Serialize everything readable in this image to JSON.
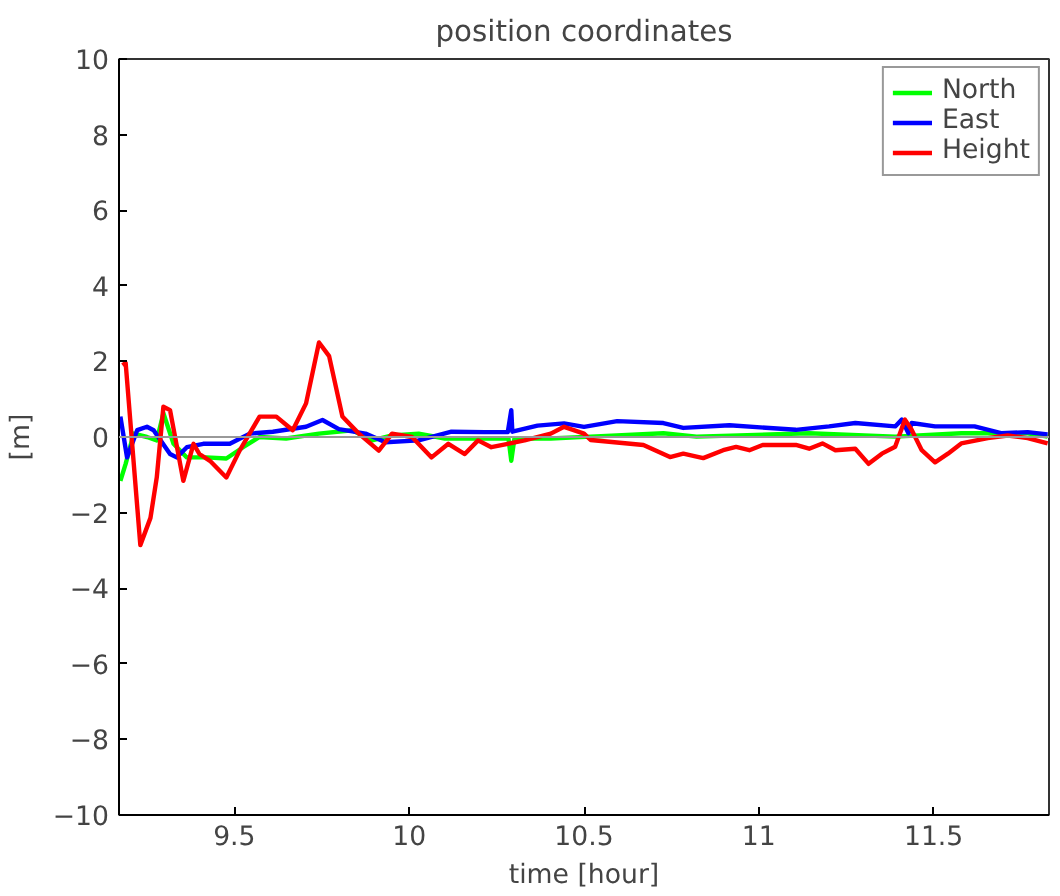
{
  "chart_data": {
    "type": "line",
    "title": "position coordinates",
    "xlabel": "time [hour]",
    "ylabel": "[m]",
    "xlim": [
      9.17,
      11.83
    ],
    "ylim": [
      -10,
      10
    ],
    "xticks": [
      9.5,
      10,
      10.5,
      11,
      11.5
    ],
    "yticks": [
      -10,
      -8,
      -6,
      -4,
      -2,
      0,
      2,
      4,
      6,
      8,
      10
    ],
    "grid": false,
    "legend": "top right",
    "line_style": "solid",
    "ref_lines": [
      {
        "axis": "y",
        "value": 0,
        "color": "#999999"
      }
    ],
    "series": [
      {
        "name": "North",
        "color": "#00ff00",
        "x": [
          9.174,
          9.189,
          9.212,
          9.25,
          9.278,
          9.297,
          9.326,
          9.364,
          9.42,
          9.477,
          9.525,
          9.572,
          9.648,
          9.742,
          9.837,
          9.894,
          9.951,
          10.027,
          10.102,
          10.216,
          10.284,
          10.292,
          10.301,
          10.405,
          10.519,
          10.727,
          10.822,
          11.144,
          11.39,
          11.579,
          11.769,
          11.826
        ],
        "values": [
          -1.16,
          -0.71,
          0.09,
          0,
          -0.09,
          0.63,
          -0.18,
          -0.54,
          -0.54,
          -0.57,
          -0.27,
          0,
          -0.04,
          0.09,
          0.18,
          -0.09,
          0.04,
          0.09,
          -0.04,
          -0.04,
          -0.04,
          -0.63,
          -0.04,
          -0.04,
          0.01,
          0.1,
          0.01,
          0.1,
          0.01,
          0.1,
          0.1,
          0.01
        ]
      },
      {
        "name": "East",
        "color": "#0000ff",
        "x": [
          9.174,
          9.193,
          9.222,
          9.25,
          9.269,
          9.316,
          9.335,
          9.364,
          9.411,
          9.487,
          9.544,
          9.61,
          9.705,
          9.752,
          9.799,
          9.875,
          9.932,
          10.027,
          10.121,
          10.216,
          10.282,
          10.292,
          10.295,
          10.367,
          10.443,
          10.5,
          10.595,
          10.727,
          10.784,
          10.916,
          11.106,
          11.201,
          11.276,
          11.39,
          11.409,
          11.428,
          11.437,
          11.504,
          11.617,
          11.693,
          11.769,
          11.826
        ],
        "values": [
          0.54,
          -0.54,
          0.18,
          0.27,
          0.18,
          -0.45,
          -0.54,
          -0.27,
          -0.18,
          -0.18,
          0.09,
          0.14,
          0.27,
          0.45,
          0.21,
          0.09,
          -0.14,
          -0.09,
          0.14,
          0.13,
          0.13,
          0.71,
          0.14,
          0.3,
          0.36,
          0.27,
          0.42,
          0.37,
          0.24,
          0.31,
          0.19,
          0.28,
          0.37,
          0.28,
          0.46,
          0.1,
          0.37,
          0.28,
          0.28,
          0.1,
          0.13,
          0.07
        ]
      },
      {
        "name": "Height",
        "color": "#ff0000",
        "x": [
          9.18,
          9.189,
          9.231,
          9.26,
          9.278,
          9.297,
          9.316,
          9.354,
          9.383,
          9.4,
          9.43,
          9.477,
          9.515,
          9.572,
          9.62,
          9.667,
          9.705,
          9.742,
          9.771,
          9.809,
          9.856,
          9.913,
          9.951,
          10.008,
          10.064,
          10.112,
          10.159,
          10.197,
          10.235,
          10.282,
          10.33,
          10.405,
          10.443,
          10.5,
          10.519,
          10.67,
          10.746,
          10.784,
          10.841,
          10.898,
          10.935,
          10.973,
          11.011,
          11.106,
          11.144,
          11.182,
          11.219,
          11.276,
          11.314,
          11.352,
          11.39,
          11.418,
          11.437,
          11.466,
          11.504,
          11.541,
          11.579,
          11.655,
          11.712,
          11.769,
          11.826
        ],
        "values": [
          1.9,
          1.96,
          -2.86,
          -2.14,
          -1.07,
          0.8,
          0.71,
          -1.16,
          -0.18,
          -0.45,
          -0.63,
          -1.07,
          -0.36,
          0.54,
          0.54,
          0.18,
          0.89,
          2.5,
          2.14,
          0.54,
          0.09,
          -0.36,
          0.09,
          0,
          -0.54,
          -0.18,
          -0.45,
          -0.09,
          -0.27,
          -0.18,
          -0.09,
          0.09,
          0.27,
          0.09,
          -0.08,
          -0.21,
          -0.53,
          -0.44,
          -0.56,
          -0.35,
          -0.26,
          -0.35,
          -0.21,
          -0.21,
          -0.31,
          -0.17,
          -0.35,
          -0.31,
          -0.71,
          -0.44,
          -0.26,
          0.46,
          0.19,
          -0.35,
          -0.67,
          -0.44,
          -0.17,
          -0.03,
          0.04,
          -0.03,
          -0.17
        ]
      }
    ]
  }
}
